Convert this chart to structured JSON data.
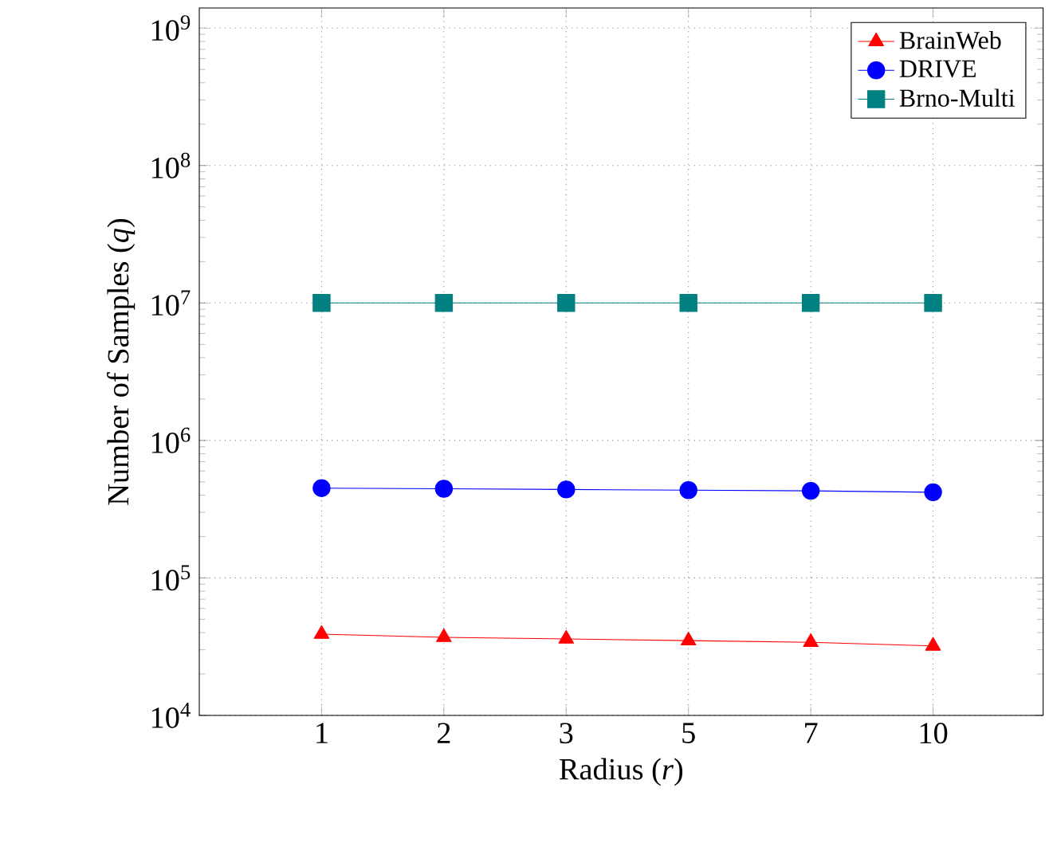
{
  "chart_data": {
    "type": "line",
    "xlabel": "Radius (*r*)",
    "ylabel": "Number of Samples (*q*)",
    "categories": [
      "1",
      "2",
      "3",
      "5",
      "7",
      "10"
    ],
    "series": [
      {
        "name": "BrainWeb",
        "color": "#ff0000",
        "marker": "triangle",
        "values": [
          39000,
          37000,
          36000,
          35000,
          34000,
          32000
        ]
      },
      {
        "name": "DRIVE",
        "color": "#0000ff",
        "marker": "circle",
        "values": [
          450000,
          445000,
          440000,
          435000,
          430000,
          420000
        ]
      },
      {
        "name": "Brno-Multi",
        "color": "#008080",
        "marker": "square",
        "values": [
          10000000,
          10000000,
          10000000,
          10000000,
          10000000,
          10000000
        ]
      }
    ],
    "log": "y",
    "ylim": [
      10000,
      1400000000
    ],
    "yticks": [
      {
        "value": 10000,
        "label": "10$^{4}$"
      },
      {
        "value": 100000,
        "label": "10$^{5}$"
      },
      {
        "value": 1000000,
        "label": "10$^{6}$"
      },
      {
        "value": 10000000,
        "label": "10$^{7}$"
      },
      {
        "value": 100000000,
        "label": "10$^{8}$"
      },
      {
        "value": 1000000000,
        "label": "10$^{9}$"
      }
    ],
    "grid": true,
    "legend": "top right",
    "line_style": "solid"
  }
}
